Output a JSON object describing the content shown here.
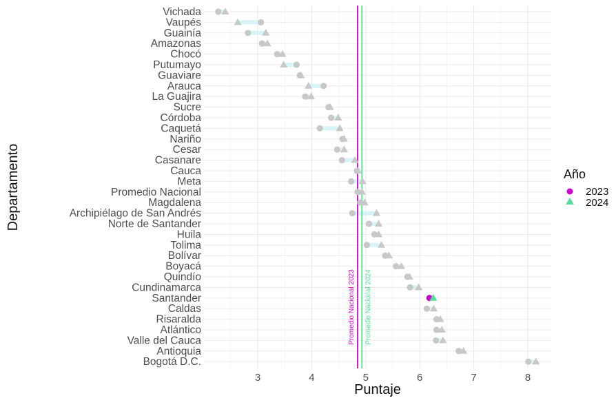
{
  "chart_data": {
    "type": "scatter",
    "xlabel": "Puntaje",
    "ylabel": "Departamento",
    "xlim": [
      2.2,
      8.4
    ],
    "x_ticks": [
      3,
      4,
      5,
      6,
      7,
      8
    ],
    "grid": true,
    "legend": {
      "title": "Año",
      "position": "right",
      "entries": [
        {
          "label": "2023",
          "color": "#CC00CC",
          "shape": "circle"
        },
        {
          "label": "2024",
          "color": "#55DD99",
          "shape": "triangle"
        }
      ]
    },
    "highlight": "Santander",
    "dim_color": "#C8C8C8",
    "segment_color": "#D8F4F8",
    "reference_lines": [
      {
        "label": "Promedio Nacional 2023",
        "x": 4.85,
        "color": "#CC00CC"
      },
      {
        "label": "Promedio Nacional 2024",
        "x": 4.93,
        "color": "#55DD99"
      }
    ],
    "categories": [
      "Vichada",
      "Vaupés",
      "Guainía",
      "Amazonas",
      "Chocó",
      "Putumayo",
      "Guaviare",
      "Arauca",
      "La Guajira",
      "Sucre",
      "Córdoba",
      "Caquetá",
      "Nariño",
      "Cesar",
      "Casanare",
      "Cauca",
      "Meta",
      "Promedio Nacional",
      "Magdalena",
      "Archipiélago de San Andrés",
      "Norte de Santander",
      "Huila",
      "Tolima",
      "Bolívar",
      "Boyacá",
      "Quindío",
      "Cundinamarca",
      "Santander",
      "Caldas",
      "Risaralda",
      "Atlántico",
      "Valle del Cauca",
      "Antioquia",
      "Bogotá D.C."
    ],
    "series": [
      {
        "name": "2023",
        "values": [
          2.27,
          3.06,
          2.82,
          3.08,
          3.36,
          3.72,
          3.78,
          4.22,
          3.88,
          4.31,
          4.36,
          4.15,
          4.57,
          4.47,
          4.56,
          4.84,
          4.73,
          4.85,
          4.9,
          4.75,
          5.06,
          5.16,
          5.02,
          5.36,
          5.56,
          5.77,
          5.82,
          6.18,
          6.13,
          6.31,
          6.31,
          6.3,
          6.72,
          8.01
        ]
      },
      {
        "name": "2024",
        "values": [
          2.4,
          2.63,
          3.15,
          3.18,
          3.46,
          3.48,
          3.8,
          3.94,
          3.99,
          4.34,
          4.49,
          4.52,
          4.6,
          4.6,
          4.8,
          4.86,
          4.94,
          4.93,
          4.98,
          5.2,
          5.24,
          5.24,
          5.29,
          5.43,
          5.66,
          5.81,
          5.98,
          6.25,
          6.26,
          6.38,
          6.41,
          6.43,
          6.81,
          8.15
        ]
      }
    ]
  }
}
